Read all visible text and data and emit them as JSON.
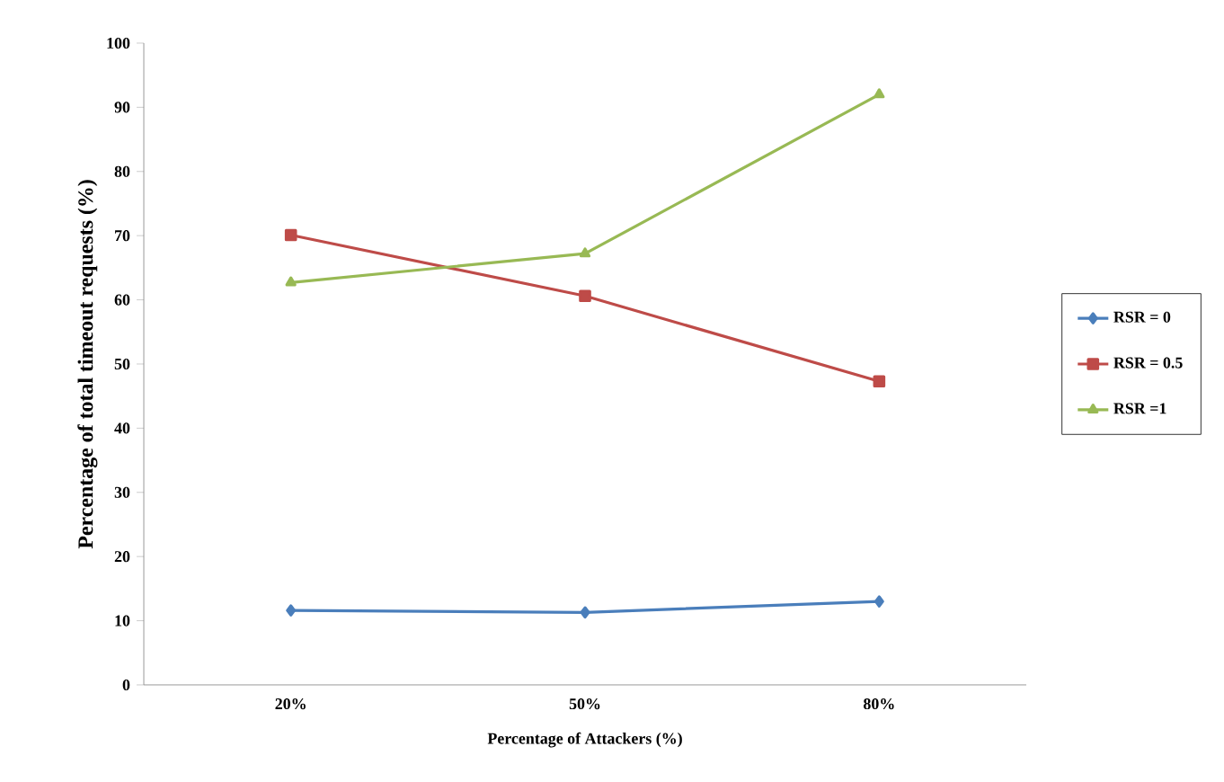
{
  "chart_data": {
    "type": "line",
    "xlabel": "Percentage of Attackers (%)",
    "ylabel": "Percentage of total timeout requests (%)",
    "categories": [
      "20%",
      "50%",
      "80%"
    ],
    "series": [
      {
        "name": "RSR = 0",
        "color": "#4a7ebb",
        "marker": "diamond",
        "values": [
          11.6,
          11.3,
          13.0
        ]
      },
      {
        "name": "RSR = 0.5",
        "color": "#be4b48",
        "marker": "square",
        "values": [
          70.1,
          60.6,
          47.3
        ]
      },
      {
        "name": "RSR =1",
        "color": "#98b954",
        "marker": "triangle",
        "values": [
          62.7,
          67.2,
          92.0
        ]
      }
    ],
    "ylim": [
      0,
      100
    ],
    "yticks": [
      0,
      10,
      20,
      30,
      40,
      50,
      60,
      70,
      80,
      90,
      100
    ],
    "grid": false,
    "legend": "right",
    "line_style": "solid"
  }
}
